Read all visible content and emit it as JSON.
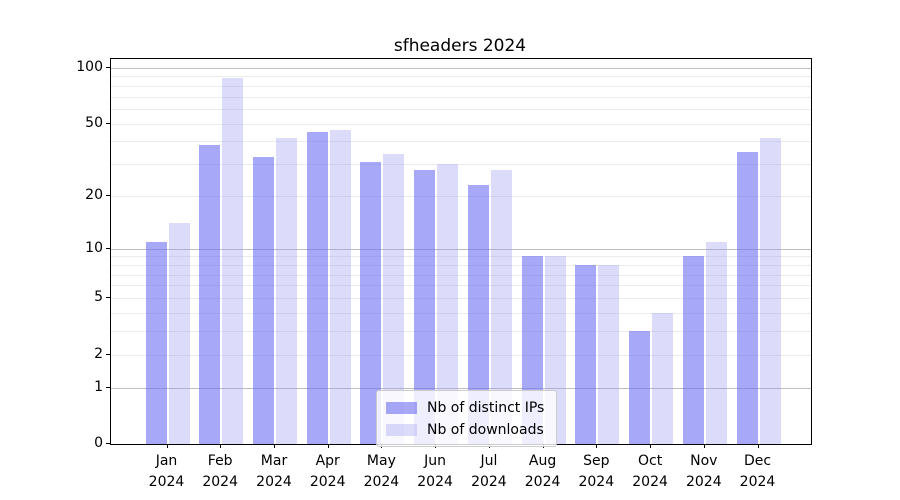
{
  "title": "sfheaders 2024",
  "chart_data": {
    "type": "bar",
    "title": "sfheaders 2024",
    "categories": [
      "Jan",
      "Feb",
      "Mar",
      "Apr",
      "May",
      "Jun",
      "Jul",
      "Aug",
      "Sep",
      "Oct",
      "Nov",
      "Dec"
    ],
    "year_label": "2024",
    "series": [
      {
        "name": "Nb of distinct IPs",
        "color": "rgba(110,110,243,0.6)",
        "values": [
          11,
          38,
          33,
          45,
          31,
          28,
          23,
          9,
          8,
          3,
          9,
          35
        ]
      },
      {
        "name": "Nb of downloads",
        "color": "rgba(155,155,241,0.35)",
        "values": [
          14,
          88,
          42,
          46,
          34,
          30,
          28,
          9,
          8,
          4,
          11,
          42
        ]
      }
    ],
    "xlabel": "",
    "ylabel": "",
    "yscale": "log1p",
    "ylim": [
      0,
      110
    ],
    "ytick_labels": [
      100,
      50,
      20,
      10,
      5,
      2,
      1,
      0
    ],
    "major_gridlines": [
      1,
      10,
      100
    ],
    "minor_gridlines": [
      2,
      3,
      4,
      5,
      6,
      7,
      8,
      9,
      20,
      30,
      40,
      50,
      60,
      70,
      80,
      90
    ],
    "grid": true,
    "legend_position": "lower center"
  },
  "colors": {
    "background": "#ffffff",
    "spine": "#000000",
    "major_grid": "#bdbdbd",
    "minor_grid": "#ebebeb",
    "text": "#000000"
  }
}
